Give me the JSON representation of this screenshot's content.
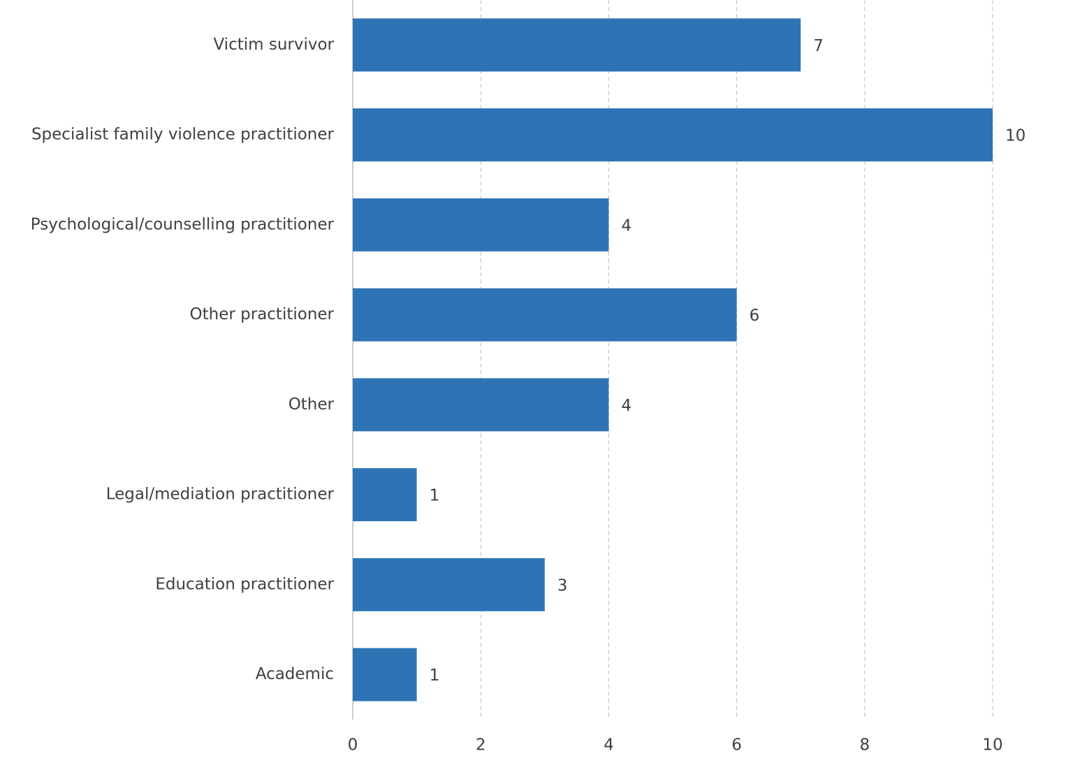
{
  "chart_data": {
    "type": "hbar",
    "categories": [
      "Victim survivor",
      "Specialist family violence practitioner",
      "Psychological/counselling practitioner",
      "Other practitioner",
      "Other",
      "Legal/mediation practitioner",
      "Education practitioner",
      "Academic"
    ],
    "values": [
      7,
      10,
      4,
      6,
      4,
      1,
      3,
      1
    ],
    "color": "#2e74b5",
    "xlim": [
      0,
      10
    ],
    "xticks": [
      0,
      2,
      4,
      6,
      8,
      10
    ],
    "grid": true
  }
}
